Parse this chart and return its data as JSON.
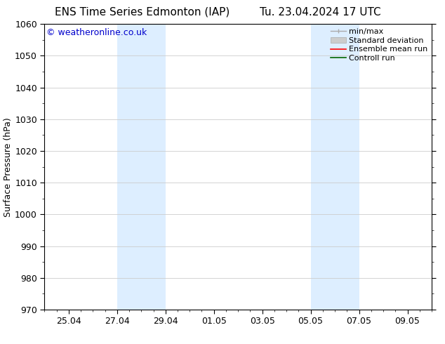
{
  "title_left": "ENS Time Series Edmonton (IAP)",
  "title_right": "Tu. 23.04.2024 17 UTC",
  "ylabel": "Surface Pressure (hPa)",
  "ylim": [
    970,
    1060
  ],
  "yticks": [
    970,
    980,
    990,
    1000,
    1010,
    1020,
    1030,
    1040,
    1050,
    1060
  ],
  "xtick_labels": [
    "25.04",
    "27.04",
    "29.04",
    "01.05",
    "03.05",
    "05.05",
    "07.05",
    "09.05"
  ],
  "xtick_positions": [
    2,
    4,
    6,
    8,
    10,
    12,
    14,
    16
  ],
  "xmin": 1,
  "xmax": 17,
  "shaded_bands": [
    {
      "x_start": 4,
      "x_end": 6
    },
    {
      "x_start": 12,
      "x_end": 14
    }
  ],
  "shaded_color": "#ddeeff",
  "background_color": "#ffffff",
  "watermark_text": "© weatheronline.co.uk",
  "watermark_color": "#0000cc",
  "watermark_fontsize": 9,
  "legend_items": [
    {
      "label": "min/max",
      "color": "#aaaaaa"
    },
    {
      "label": "Standard deviation",
      "color": "#cccccc"
    },
    {
      "label": "Ensemble mean run",
      "color": "red"
    },
    {
      "label": "Controll run",
      "color": "green"
    }
  ],
  "grid_color": "#cccccc",
  "tick_color": "#000000",
  "title_fontsize": 11,
  "axis_label_fontsize": 9,
  "tick_fontsize": 9,
  "legend_fontsize": 8
}
